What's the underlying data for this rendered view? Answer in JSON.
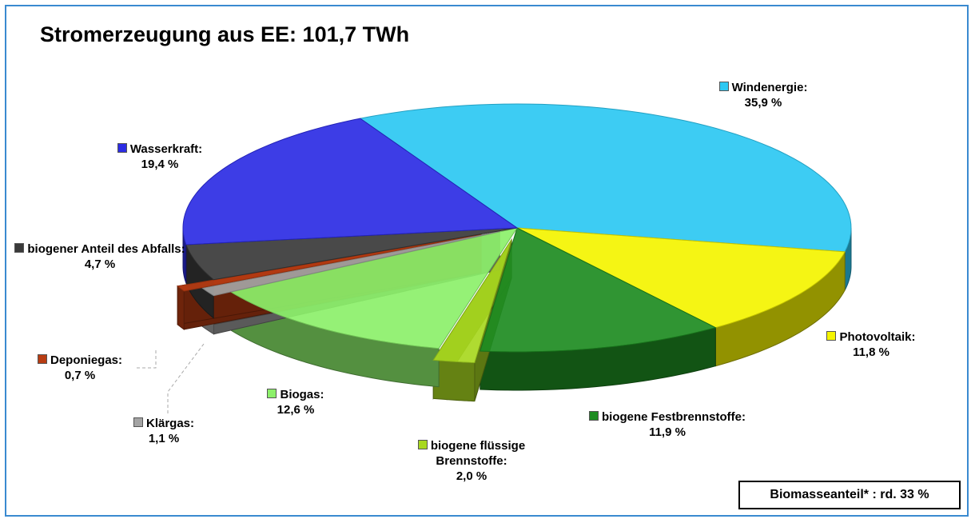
{
  "chart_data": {
    "type": "pie",
    "title": "Stromerzeugung aus EE: 101,7 TWh",
    "categories": [
      "Windenergie:",
      "Photovoltaik:",
      "biogene Festbrennstoffe:",
      "biogene flüssige Brennstoffe:",
      "Biogas:",
      "Klärgas:",
      "Deponiegas:",
      "biogener Anteil des Abfalls:",
      "Wasserkraft:"
    ],
    "values": [
      35.9,
      11.8,
      11.9,
      2.0,
      12.6,
      1.1,
      0.7,
      4.7,
      19.4
    ],
    "value_labels": [
      "35,9 %",
      "11,8 %",
      "11,9 %",
      "2,0 %",
      "12,6 %",
      "1,1 %",
      "0,7 %",
      "4,7 %",
      "19,4 %"
    ],
    "colors": [
      "#2cc8f2",
      "#f4f400",
      "#1e8c22",
      "#a8d820",
      "#8cf06a",
      "#a4a4a4",
      "#b83c12",
      "#3a3a3a",
      "#2c2ce4"
    ],
    "annotation": "Biomasseanteil* : rd. 33 %"
  }
}
